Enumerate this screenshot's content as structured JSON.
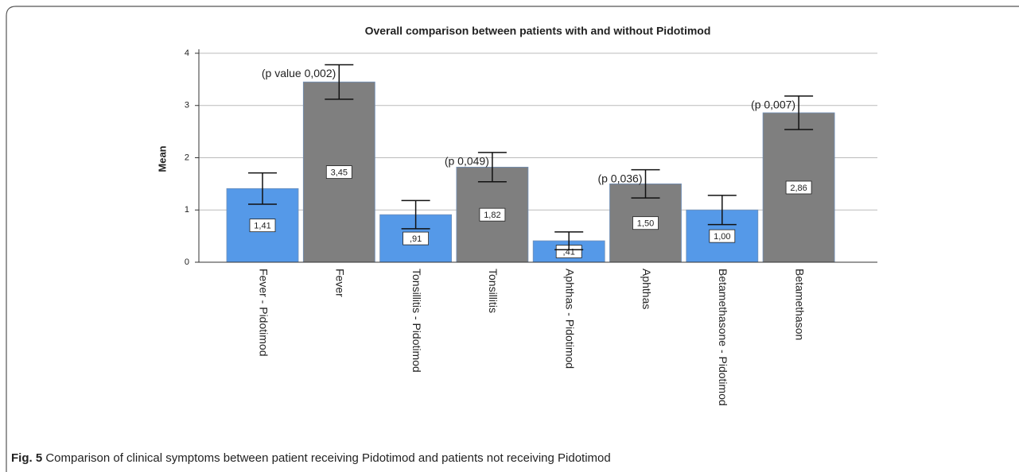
{
  "chart_data": {
    "type": "bar",
    "title": "Overall comparison between patients with and without Pidotimod",
    "y_label": "Mean",
    "categories": [
      "Fever - Pidotimod",
      "Fever",
      "Tonsillitis - Pidotimod",
      "Tonsillitis",
      "Aphthas - Pidotimod",
      "Aphthas",
      "Betamethasone - Pidotimod",
      "Betamethason"
    ],
    "values": [
      1.41,
      3.45,
      0.91,
      1.82,
      0.41,
      1.5,
      1.0,
      2.86
    ],
    "value_labels": [
      "1,41",
      "3,45",
      ",91",
      "1,82",
      ",41",
      "1,50",
      "1,00",
      "2,86"
    ],
    "errors": [
      0.3,
      0.33,
      0.27,
      0.28,
      0.17,
      0.27,
      0.28,
      0.32
    ],
    "colors": [
      "#5599e8",
      "#7f7f7f",
      "#5599e8",
      "#7f7f7f",
      "#5599e8",
      "#7f7f7f",
      "#5599e8",
      "#7f7f7f"
    ],
    "annotations": [
      {
        "text": "(p value 0,002)",
        "category": "Fever"
      },
      {
        "text": "(p 0,049)",
        "category": "Tonsillitis"
      },
      {
        "text": "(p 0,036)",
        "category": "Aphthas"
      },
      {
        "text": "(p 0,007)",
        "category": "Betamethason"
      }
    ],
    "ylim": [
      0,
      4
    ],
    "yticks": [
      0,
      1,
      2,
      3,
      4
    ],
    "grid": true
  },
  "caption": {
    "label": "Fig. 5",
    "text": "Comparison of clinical symptoms between patient receiving Pidotimod and patients not receiving Pidotimod"
  }
}
